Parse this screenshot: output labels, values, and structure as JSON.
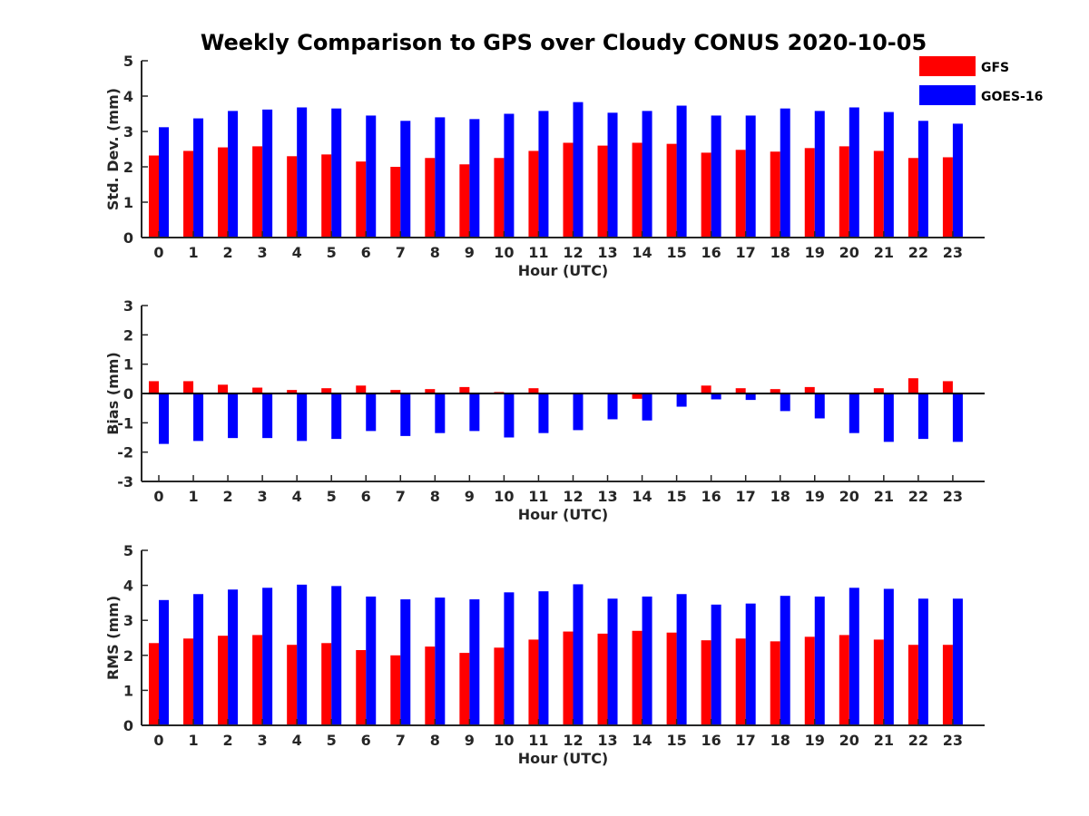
{
  "title": "Weekly Comparison to GPS over Cloudy CONUS 2020-10-05",
  "legend": [
    {
      "name": "GFS",
      "color": "#ff0000"
    },
    {
      "name": "GOES-16",
      "color": "#0000ff"
    }
  ],
  "chart_data": [
    {
      "type": "bar",
      "xlabel": "Hour (UTC)",
      "ylabel": "Std. Dev. (mm)",
      "ylim": [
        0,
        5
      ],
      "yticks": [
        0,
        1,
        2,
        3,
        4,
        5
      ],
      "categories": [
        "0",
        "1",
        "2",
        "3",
        "4",
        "5",
        "6",
        "7",
        "8",
        "9",
        "10",
        "11",
        "12",
        "13",
        "14",
        "15",
        "16",
        "17",
        "18",
        "19",
        "20",
        "21",
        "22",
        "23"
      ],
      "series": [
        {
          "name": "GFS",
          "color": "#ff0000",
          "values": [
            2.32,
            2.45,
            2.55,
            2.58,
            2.3,
            2.35,
            2.15,
            2.0,
            2.25,
            2.07,
            2.25,
            2.45,
            2.68,
            2.6,
            2.68,
            2.65,
            2.4,
            2.48,
            2.43,
            2.53,
            2.58,
            2.45,
            2.25,
            2.27
          ]
        },
        {
          "name": "GOES-16",
          "color": "#0000ff",
          "values": [
            3.12,
            3.37,
            3.58,
            3.62,
            3.68,
            3.65,
            3.45,
            3.3,
            3.4,
            3.35,
            3.5,
            3.58,
            3.83,
            3.53,
            3.58,
            3.73,
            3.45,
            3.45,
            3.65,
            3.58,
            3.68,
            3.55,
            3.3,
            3.22
          ]
        }
      ]
    },
    {
      "type": "bar",
      "xlabel": "Hour (UTC)",
      "ylabel": "Bias (mm)",
      "ylim": [
        -3,
        3
      ],
      "yticks": [
        -3,
        -2,
        -1,
        0,
        1,
        2,
        3
      ],
      "categories": [
        "0",
        "1",
        "2",
        "3",
        "4",
        "5",
        "6",
        "7",
        "8",
        "9",
        "10",
        "11",
        "12",
        "13",
        "14",
        "15",
        "16",
        "17",
        "18",
        "19",
        "20",
        "21",
        "22",
        "23"
      ],
      "series": [
        {
          "name": "GFS",
          "color": "#ff0000",
          "values": [
            0.42,
            0.42,
            0.3,
            0.2,
            0.12,
            0.18,
            0.27,
            0.12,
            0.15,
            0.22,
            0.05,
            0.18,
            0.02,
            -0.03,
            -0.18,
            0.0,
            0.27,
            0.18,
            0.15,
            0.22,
            0.02,
            0.18,
            0.52,
            0.42
          ]
        },
        {
          "name": "GOES-16",
          "color": "#0000ff",
          "values": [
            -1.72,
            -1.62,
            -1.52,
            -1.52,
            -1.62,
            -1.55,
            -1.28,
            -1.45,
            -1.35,
            -1.28,
            -1.5,
            -1.35,
            -1.25,
            -0.88,
            -0.92,
            -0.45,
            -0.2,
            -0.22,
            -0.6,
            -0.85,
            -1.35,
            -1.65,
            -1.55,
            -1.65
          ]
        }
      ]
    },
    {
      "type": "bar",
      "xlabel": "Hour (UTC)",
      "ylabel": "RMS (mm)",
      "ylim": [
        0,
        5
      ],
      "yticks": [
        0,
        1,
        2,
        3,
        4,
        5
      ],
      "categories": [
        "0",
        "1",
        "2",
        "3",
        "4",
        "5",
        "6",
        "7",
        "8",
        "9",
        "10",
        "11",
        "12",
        "13",
        "14",
        "15",
        "16",
        "17",
        "18",
        "19",
        "20",
        "21",
        "22",
        "23"
      ],
      "series": [
        {
          "name": "GFS",
          "color": "#ff0000",
          "values": [
            2.35,
            2.48,
            2.56,
            2.58,
            2.3,
            2.35,
            2.15,
            2.0,
            2.25,
            2.07,
            2.22,
            2.45,
            2.68,
            2.62,
            2.7,
            2.65,
            2.43,
            2.48,
            2.4,
            2.53,
            2.58,
            2.45,
            2.3,
            2.3
          ]
        },
        {
          "name": "GOES-16",
          "color": "#0000ff",
          "values": [
            3.58,
            3.75,
            3.88,
            3.93,
            4.02,
            3.98,
            3.68,
            3.6,
            3.65,
            3.6,
            3.8,
            3.83,
            4.03,
            3.62,
            3.68,
            3.75,
            3.45,
            3.48,
            3.7,
            3.68,
            3.93,
            3.9,
            3.62,
            3.62
          ]
        }
      ]
    }
  ]
}
